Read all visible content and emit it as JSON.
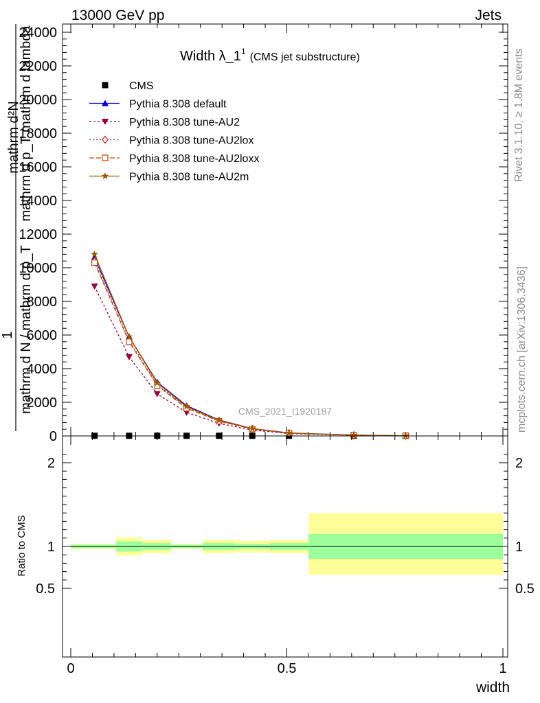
{
  "header": {
    "left": "13000 GeV pp",
    "right": "Jets"
  },
  "side_labels": {
    "rivet": "Rivet 3.1.10, ≥ 1.8M events",
    "mcplots": "mcplots.cern.ch [arXiv:1306.3436]"
  },
  "watermark": "CMS_2021_I1920187",
  "chart_data": [
    {
      "type": "line",
      "title": "Width λ_1",
      "title_sup": "1",
      "subtitle": "(CMS jet substructure)",
      "ylabel_lines": [
        "mathrm d²N",
        "1",
        "mathrm d N / mathrm d p_T",
        "mathrm d p_T mathrm d lambda"
      ],
      "xlim": [
        0,
        1
      ],
      "ylim": [
        0,
        24000
      ],
      "yticks": [
        2000,
        4000,
        6000,
        8000,
        10000,
        12000,
        14000,
        16000,
        18000,
        20000,
        22000,
        24000
      ],
      "ytick_labels": [
        "2000",
        "4000",
        "6000",
        "8000",
        "10000",
        "12000",
        "14000",
        "16000",
        "18000",
        "20000",
        "22000",
        "24000"
      ],
      "y_zero_label": "0",
      "legend_position": "top-left",
      "bin_centers": [
        0.055,
        0.135,
        0.2,
        0.268,
        0.343,
        0.42,
        0.505,
        0.655,
        0.775
      ],
      "series": [
        {
          "name": "CMS",
          "marker": "square",
          "color": "#000000",
          "dash": "",
          "values": [
            10,
            10,
            10,
            10,
            10,
            10,
            10,
            10,
            10
          ]
        },
        {
          "name": "Pythia 8.308 default",
          "marker": "triangle-up",
          "color": "#0000cc",
          "dash": "",
          "values": [
            10600,
            5900,
            3200,
            1800,
            950,
            440,
            180,
            50,
            10
          ]
        },
        {
          "name": "Pythia 8.308 tune-AU2",
          "marker": "triangle-down",
          "color": "#990033",
          "dash": "3,3",
          "values": [
            8900,
            4700,
            2500,
            1400,
            750,
            350,
            140,
            40,
            8
          ]
        },
        {
          "name": "Pythia 8.308 tune-AU2lox",
          "marker": "diamond",
          "color": "#bb2222",
          "dash": "2,3",
          "values": [
            10400,
            5700,
            3050,
            1700,
            900,
            420,
            170,
            48,
            10
          ]
        },
        {
          "name": "Pythia 8.308 tune-AU2loxx",
          "marker": "square-open",
          "color": "#cc4400",
          "dash": "7,3",
          "values": [
            10300,
            5600,
            3000,
            1650,
            880,
            410,
            165,
            47,
            10
          ]
        },
        {
          "name": "Pythia 8.308 tune-AU2m",
          "marker": "star",
          "color": "#995500",
          "dash": "",
          "values": [
            10800,
            5900,
            3150,
            1750,
            930,
            435,
            175,
            50,
            10
          ]
        }
      ]
    },
    {
      "type": "area",
      "ylabel": "Ratio to CMS",
      "xlabel": "width",
      "xlim": [
        0,
        1
      ],
      "ylim": [
        0.4,
        2.2
      ],
      "yticks": [
        0.5,
        1,
        2
      ],
      "ytick_labels": [
        "0.5",
        "1",
        "2"
      ],
      "xticks": [
        0,
        0.5,
        1
      ],
      "xtick_labels": [
        "0",
        "0.5",
        "1"
      ],
      "bands": [
        {
          "x0": 0.0,
          "x1": 0.105,
          "inner": [
            0.98,
            1.02
          ],
          "outer": [
            0.97,
            1.03
          ]
        },
        {
          "x0": 0.105,
          "x1": 0.165,
          "inner": [
            0.94,
            1.06
          ],
          "outer": [
            0.89,
            1.11
          ]
        },
        {
          "x0": 0.165,
          "x1": 0.232,
          "inner": [
            0.96,
            1.04
          ],
          "outer": [
            0.92,
            1.08
          ]
        },
        {
          "x0": 0.232,
          "x1": 0.305,
          "inner": [
            0.98,
            1.02
          ],
          "outer": [
            0.97,
            1.03
          ]
        },
        {
          "x0": 0.305,
          "x1": 0.38,
          "inner": [
            0.96,
            1.04
          ],
          "outer": [
            0.92,
            1.08
          ]
        },
        {
          "x0": 0.38,
          "x1": 0.46,
          "inner": [
            0.97,
            1.03
          ],
          "outer": [
            0.93,
            1.07
          ]
        },
        {
          "x0": 0.46,
          "x1": 0.55,
          "inner": [
            0.96,
            1.04
          ],
          "outer": [
            0.92,
            1.08
          ]
        },
        {
          "x0": 0.55,
          "x1": 1.0,
          "inner": [
            0.85,
            1.15
          ],
          "outer": [
            0.66,
            1.4
          ]
        }
      ],
      "inner_color": "#9cff9c",
      "outer_color": "#ffff99"
    }
  ]
}
